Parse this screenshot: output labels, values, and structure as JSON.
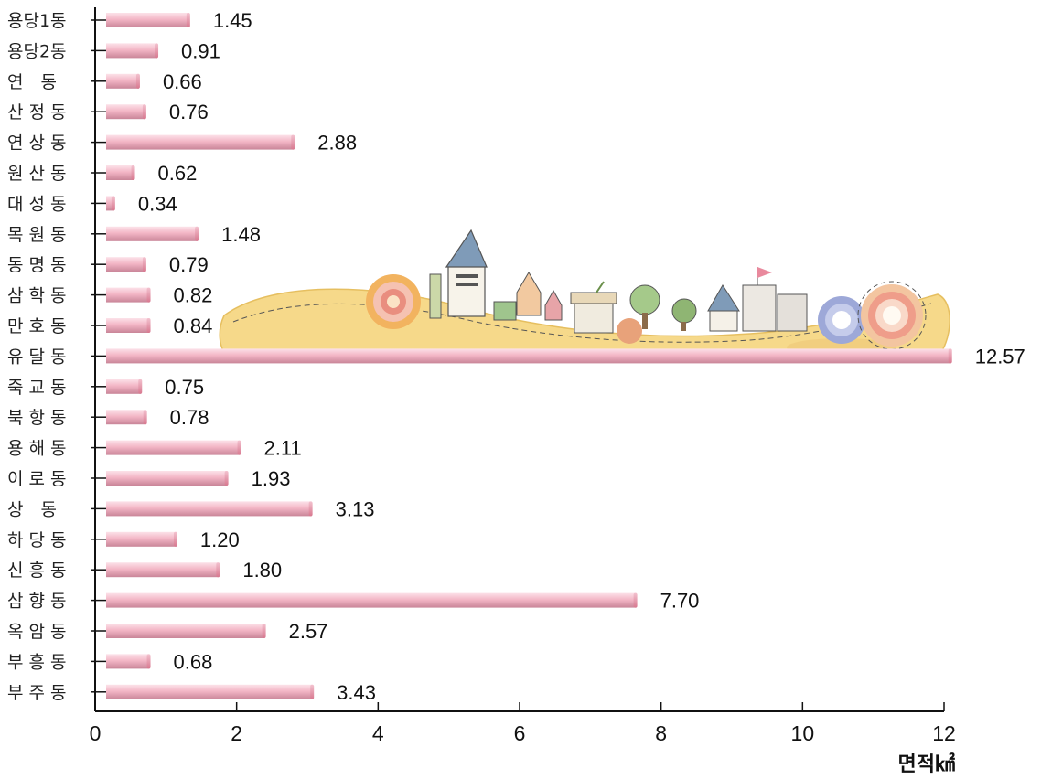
{
  "chart_data": {
    "type": "bar",
    "orientation": "horizontal",
    "categories": [
      "용당1동",
      "용당2동",
      "연　동",
      "산 정 동",
      "연 상 동",
      "원 산 동",
      "대 성 동",
      "목 원 동",
      "동 명 동",
      "삼 학 동",
      "만 호 동",
      "유 달 동",
      "죽 교 동",
      "북 항 동",
      "용 해 동",
      "이 로 동",
      "상　동",
      "하 당 동",
      "신 흥 동",
      "삼 향 동",
      "옥 암 동",
      "부 흥 동",
      "부 주 동"
    ],
    "values": [
      1.45,
      0.91,
      0.66,
      0.76,
      2.88,
      0.62,
      0.34,
      1.48,
      0.79,
      0.82,
      0.84,
      12.57,
      0.75,
      0.78,
      2.11,
      1.93,
      3.13,
      1.2,
      1.8,
      7.7,
      2.57,
      0.68,
      3.43
    ],
    "value_labels": [
      "1.45",
      "0.91",
      "0.66",
      "0.76",
      "2.88",
      "0.62",
      "0.34",
      "1.48",
      "0.79",
      "0.82",
      "0.84",
      "12.57",
      "0.75",
      "0.78",
      "2.11",
      "1.93",
      "3.13",
      "1.20",
      "1.80",
      "7.70",
      "2.57",
      "0.68",
      "3.43"
    ],
    "bar_lengths": [
      1.33,
      0.88,
      0.62,
      0.71,
      2.81,
      0.55,
      0.27,
      1.45,
      0.71,
      0.77,
      0.77,
      12.1,
      0.65,
      0.72,
      2.05,
      1.87,
      3.06,
      1.15,
      1.75,
      7.65,
      2.4,
      0.77,
      3.08
    ],
    "xticks": [
      0,
      2,
      4,
      6,
      8,
      10,
      12
    ],
    "xlim": [
      0,
      12
    ],
    "xlabel": "면적㎢",
    "title": "",
    "grid": false,
    "colors": {
      "bar_main": "#f4b8c8",
      "bar_light": "#fde3ea",
      "bar_dark": "#c8869a",
      "cap": "#e48aa4",
      "axis": "#111111"
    }
  },
  "decoration": {
    "name": "town-illustration"
  }
}
